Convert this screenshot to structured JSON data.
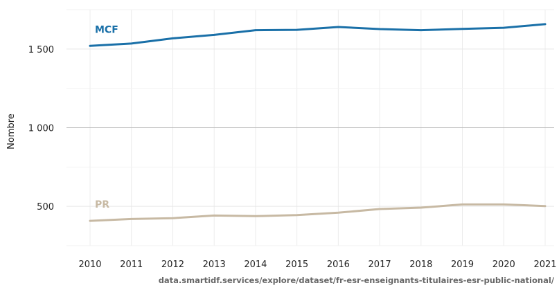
{
  "chart_data": {
    "type": "line",
    "title": "",
    "xlabel": "",
    "ylabel": "Nombre",
    "x": [
      "2010",
      "2011",
      "2012",
      "2013",
      "2014",
      "2015",
      "2016",
      "2017",
      "2018",
      "2019",
      "2020",
      "2021"
    ],
    "y_ticks": [
      {
        "value": 500,
        "label": "500"
      },
      {
        "value": 1000,
        "label": "1 000"
      },
      {
        "value": 1500,
        "label": "1 500"
      }
    ],
    "ylim": [
      250,
      1750
    ],
    "grid": true,
    "series": [
      {
        "name": "MCF",
        "color": "#1a70a8",
        "values": [
          1520,
          1535,
          1568,
          1590,
          1620,
          1622,
          1640,
          1627,
          1620,
          1628,
          1635,
          1658
        ]
      },
      {
        "name": "PR",
        "color": "#c7b9a3",
        "values": [
          408,
          420,
          425,
          442,
          438,
          445,
          460,
          483,
          492,
          512,
          512,
          502
        ]
      }
    ],
    "source": "data.smartidf.services/explore/dataset/fr-esr-enseignants-titulaires-esr-public-national/"
  }
}
